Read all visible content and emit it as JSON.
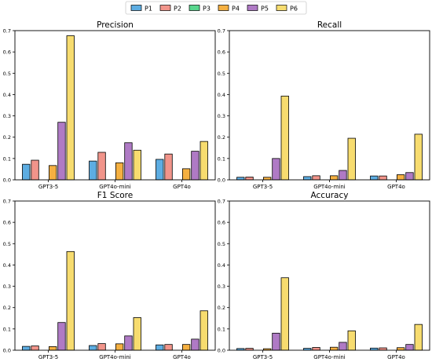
{
  "legend": {
    "placement": "top-center",
    "entries": [
      {
        "name": "P1",
        "color": "#5dade2"
      },
      {
        "name": "P2",
        "color": "#f1948a"
      },
      {
        "name": "P3",
        "color": "#58d68d"
      },
      {
        "name": "P4",
        "color": "#f5b041"
      },
      {
        "name": "P5",
        "color": "#af7ac5"
      },
      {
        "name": "P6",
        "color": "#f7dc6f"
      }
    ]
  },
  "chart_data": [
    {
      "type": "bar",
      "title": "Precision",
      "categories": [
        "GPT3-5",
        "GPT4o-mini",
        "GPT4o"
      ],
      "ylim": [
        0,
        0.7
      ],
      "yticks": [
        "0.0",
        "0.1",
        "0.2",
        "0.3",
        "0.4",
        "0.5",
        "0.6",
        "0.7"
      ],
      "grid": false,
      "series": [
        {
          "name": "P1",
          "values": [
            0.073,
            0.088,
            0.096
          ]
        },
        {
          "name": "P2",
          "values": [
            0.092,
            0.129,
            0.121
          ]
        },
        {
          "name": "P3",
          "values": [
            0.0,
            0.0,
            0.0
          ]
        },
        {
          "name": "P4",
          "values": [
            0.067,
            0.08,
            0.052
          ]
        },
        {
          "name": "P5",
          "values": [
            0.27,
            0.174,
            0.134
          ]
        },
        {
          "name": "P6",
          "values": [
            0.676,
            0.139,
            0.18
          ]
        }
      ]
    },
    {
      "type": "bar",
      "title": "Recall",
      "categories": [
        "GPT3-5",
        "GPT4o-mini",
        "GPT4o"
      ],
      "ylim": [
        0,
        0.7
      ],
      "yticks": [
        "0.0",
        "0.1",
        "0.2",
        "0.3",
        "0.4",
        "0.5",
        "0.6",
        "0.7"
      ],
      "grid": false,
      "series": [
        {
          "name": "P1",
          "values": [
            0.012,
            0.015,
            0.018
          ]
        },
        {
          "name": "P2",
          "values": [
            0.013,
            0.019,
            0.018
          ]
        },
        {
          "name": "P3",
          "values": [
            0.0,
            0.0,
            0.0
          ]
        },
        {
          "name": "P4",
          "values": [
            0.012,
            0.019,
            0.024
          ]
        },
        {
          "name": "P5",
          "values": [
            0.1,
            0.044,
            0.034
          ]
        },
        {
          "name": "P6",
          "values": [
            0.393,
            0.195,
            0.214
          ]
        }
      ]
    },
    {
      "type": "bar",
      "title": "F1 Score",
      "categories": [
        "GPT3-5",
        "GPT4o-mini",
        "GPT4o"
      ],
      "ylim": [
        0,
        0.7
      ],
      "yticks": [
        "0.0",
        "0.1",
        "0.2",
        "0.3",
        "0.4",
        "0.5",
        "0.6",
        "0.7"
      ],
      "grid": false,
      "series": [
        {
          "name": "P1",
          "values": [
            0.018,
            0.022,
            0.025
          ]
        },
        {
          "name": "P2",
          "values": [
            0.02,
            0.031,
            0.027
          ]
        },
        {
          "name": "P3",
          "values": [
            0.0,
            0.0,
            0.0
          ]
        },
        {
          "name": "P4",
          "values": [
            0.017,
            0.03,
            0.027
          ]
        },
        {
          "name": "P5",
          "values": [
            0.13,
            0.067,
            0.052
          ]
        },
        {
          "name": "P6",
          "values": [
            0.463,
            0.153,
            0.185
          ]
        }
      ]
    },
    {
      "type": "bar",
      "title": "Accuracy",
      "categories": [
        "GPT3-5",
        "GPT4o-mini",
        "GPT4o"
      ],
      "ylim": [
        0,
        0.7
      ],
      "yticks": [
        "0.0",
        "0.1",
        "0.2",
        "0.3",
        "0.4",
        "0.5",
        "0.6",
        "0.7"
      ],
      "grid": false,
      "series": [
        {
          "name": "P1",
          "values": [
            0.008,
            0.009,
            0.01
          ]
        },
        {
          "name": "P2",
          "values": [
            0.009,
            0.013,
            0.011
          ]
        },
        {
          "name": "P3",
          "values": [
            0.0,
            0.0,
            0.0
          ]
        },
        {
          "name": "P4",
          "values": [
            0.007,
            0.014,
            0.012
          ]
        },
        {
          "name": "P5",
          "values": [
            0.08,
            0.037,
            0.027
          ]
        },
        {
          "name": "P6",
          "values": [
            0.34,
            0.091,
            0.121
          ]
        }
      ]
    }
  ]
}
